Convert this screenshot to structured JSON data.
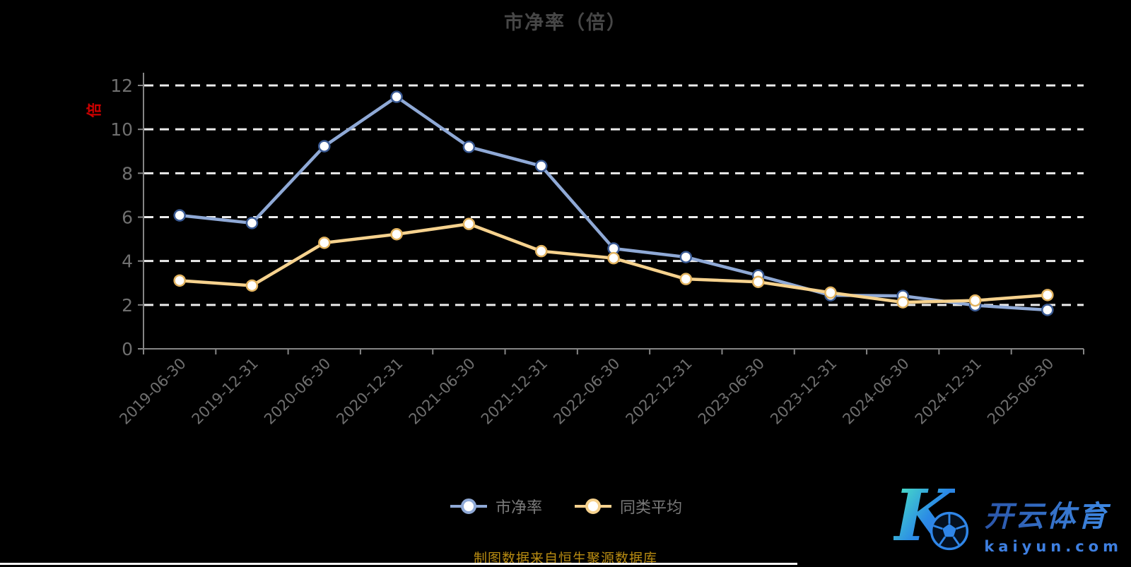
{
  "y_axis": {
    "unit": "倍"
  },
  "footer": {
    "source_text": "制图数据来自恒生聚源数据库"
  },
  "watermark": {
    "letter": "K",
    "ball_icon": "soccer-ball",
    "brand": "开云体育",
    "domain": "kaiyun.com",
    "accent_teal": "#49e2c4",
    "accent_blue": "#2f86e8"
  },
  "chart_data": {
    "type": "line",
    "title": "市净率（倍）",
    "categories": [
      "2019-06-30",
      "2019-12-31",
      "2020-06-30",
      "2020-12-31",
      "2021-06-30",
      "2021-12-31",
      "2022-06-30",
      "2022-12-31",
      "2023-06-30",
      "2023-12-31",
      "2024-06-30",
      "2024-12-31",
      "2025-06-30"
    ],
    "series": [
      {
        "name": "市净率",
        "color": "#8fa9d6",
        "marker_border": "#3a5a94",
        "values": [
          6.08,
          5.73,
          9.23,
          11.48,
          9.2,
          8.33,
          4.57,
          4.18,
          3.34,
          2.44,
          2.41,
          1.98,
          1.77
        ]
      },
      {
        "name": "同类平均",
        "color": "#f6d28e",
        "marker_border": "#e2b35f",
        "values": [
          3.11,
          2.88,
          4.83,
          5.22,
          5.69,
          4.45,
          4.13,
          3.18,
          3.05,
          2.56,
          2.12,
          2.2,
          2.45
        ]
      }
    ],
    "ylim": [
      0,
      12
    ],
    "yticks": [
      0,
      2,
      4,
      6,
      8,
      10,
      12
    ],
    "grid": "horizontal-dashed-white",
    "background": "#000000",
    "legend_position": "bottom-center",
    "x_label_rotation": -45
  }
}
